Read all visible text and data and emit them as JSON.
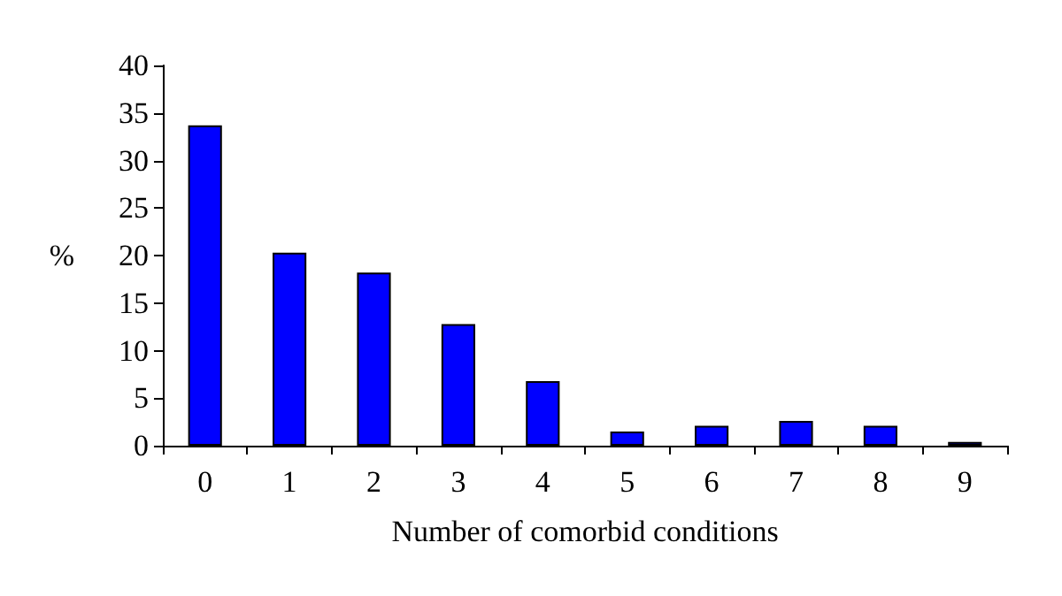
{
  "chart_data": {
    "type": "bar",
    "xlabel": "Number of comorbid conditions",
    "ylabel": "%",
    "categories": [
      "0",
      "1",
      "2",
      "3",
      "4",
      "5",
      "6",
      "7",
      "8",
      "9"
    ],
    "values": [
      33.7,
      20.3,
      18.2,
      12.8,
      6.8,
      1.5,
      2.1,
      2.6,
      2.1,
      0.4
    ],
    "color": "#0000ff",
    "ylim": [
      0,
      40
    ],
    "yticks": [
      0,
      5,
      10,
      15,
      20,
      25,
      30,
      35,
      40
    ],
    "grid": false
  }
}
